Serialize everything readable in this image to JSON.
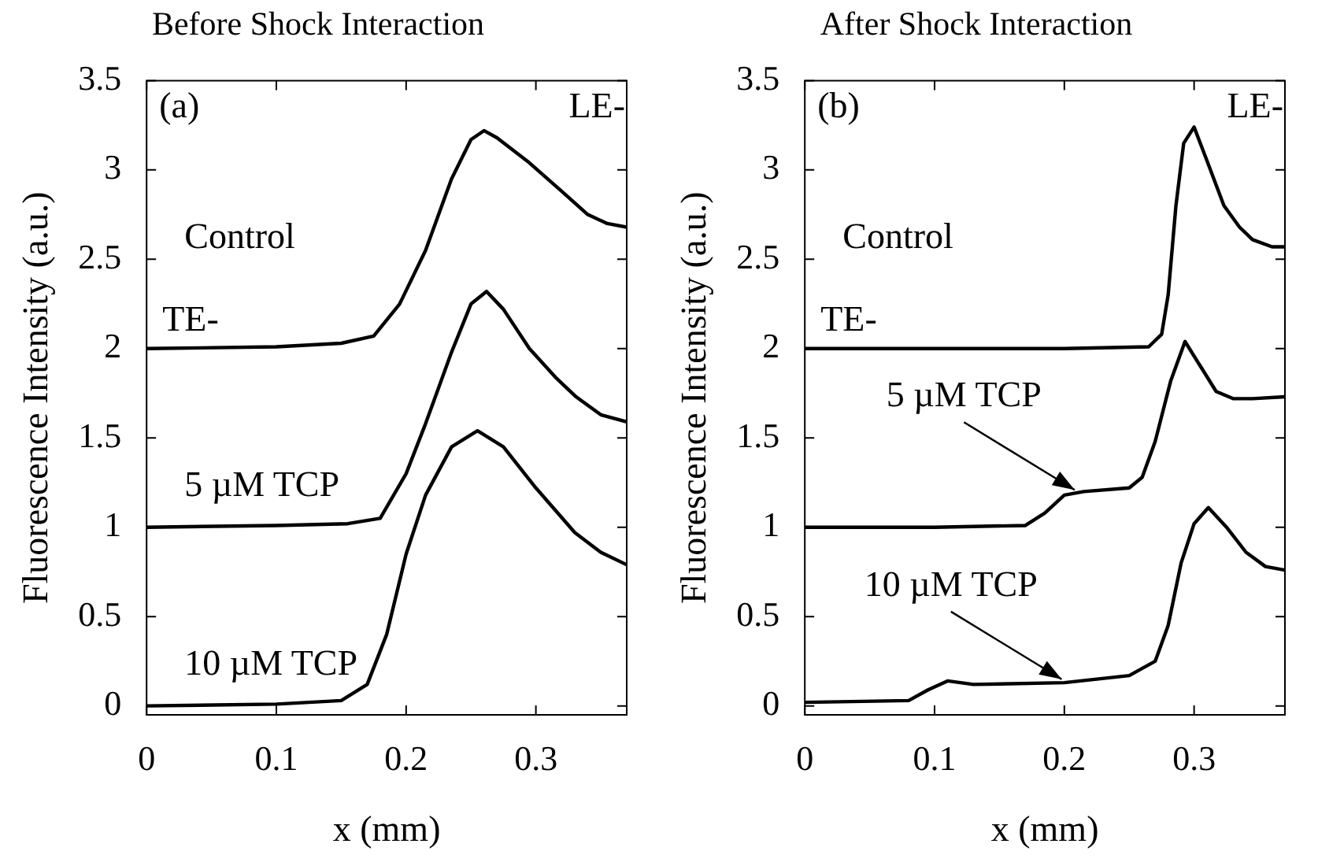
{
  "chart_data": [
    {
      "type": "line",
      "title": "Before Shock Interaction",
      "xlabel": "x (mm)",
      "ylabel": "Fluorescence Intensity (a.u.)",
      "xlim": [
        0,
        0.37
      ],
      "xticks": [
        0,
        0.1,
        0.2,
        0.3
      ],
      "ylim": [
        -0.05,
        3.5
      ],
      "yticks": [
        0,
        0.5,
        1,
        1.5,
        2,
        2.5,
        3,
        3.5
      ],
      "grid": false,
      "legend": false,
      "marker": "none",
      "line_style": "solid",
      "annotations": [
        "(a)",
        {
          "text": "TE-",
          "x": 0,
          "y": 2
        },
        "LE-"
      ],
      "series": [
        {
          "name": "Control",
          "color": "#000000",
          "x": [
            0,
            0.1,
            0.15,
            0.175,
            0.195,
            0.215,
            0.235,
            0.25,
            0.26,
            0.27,
            0.295,
            0.32,
            0.34,
            0.355,
            0.37
          ],
          "values": [
            2.0,
            2.01,
            2.03,
            2.07,
            2.25,
            2.55,
            2.95,
            3.17,
            3.22,
            3.18,
            3.04,
            2.88,
            2.75,
            2.7,
            2.68
          ]
        },
        {
          "name": "5 µM TCP",
          "color": "#000000",
          "x": [
            0,
            0.1,
            0.155,
            0.18,
            0.2,
            0.215,
            0.235,
            0.25,
            0.262,
            0.275,
            0.295,
            0.315,
            0.331,
            0.35,
            0.37
          ],
          "values": [
            1.0,
            1.01,
            1.02,
            1.05,
            1.3,
            1.58,
            1.98,
            2.25,
            2.32,
            2.22,
            2.0,
            1.84,
            1.73,
            1.63,
            1.59
          ]
        },
        {
          "name": "10 µM TCP",
          "color": "#000000",
          "x": [
            0,
            0.1,
            0.15,
            0.17,
            0.185,
            0.2,
            0.215,
            0.235,
            0.255,
            0.275,
            0.3,
            0.33,
            0.35,
            0.37
          ],
          "values": [
            0,
            0.01,
            0.03,
            0.12,
            0.4,
            0.85,
            1.18,
            1.45,
            1.54,
            1.45,
            1.22,
            0.97,
            0.86,
            0.79
          ]
        }
      ]
    },
    {
      "type": "line",
      "title": "After Shock Interaction",
      "xlabel": "x (mm)",
      "ylabel": "Fluorescence Intensity (a.u.)",
      "xlim": [
        0,
        0.37
      ],
      "xticks": [
        0,
        0.1,
        0.2,
        0.3
      ],
      "ylim": [
        -0.05,
        3.5
      ],
      "yticks": [
        0,
        0.5,
        1,
        1.5,
        2,
        2.5,
        3,
        3.5
      ],
      "grid": false,
      "legend": false,
      "marker": "none",
      "line_style": "solid",
      "annotations": [
        "(b)",
        {
          "text": "TE-",
          "x": 0,
          "y": 2
        },
        "LE-",
        {
          "text": "5 µM TCP",
          "x": 0.21,
          "y": 1.2
        },
        {
          "text": "10 µM TCP",
          "x": 0.2,
          "y": 0.14
        }
      ],
      "series": [
        {
          "name": "Control",
          "color": "#000000",
          "x": [
            0,
            0.1,
            0.2,
            0.265,
            0.275,
            0.28,
            0.286,
            0.292,
            0.3,
            0.31,
            0.323,
            0.335,
            0.345,
            0.36,
            0.37
          ],
          "values": [
            2.0,
            2.0,
            2.0,
            2.01,
            2.08,
            2.3,
            2.8,
            3.15,
            3.24,
            3.05,
            2.8,
            2.68,
            2.61,
            2.57,
            2.57
          ]
        },
        {
          "color": "#000000",
          "x": [
            0,
            0.1,
            0.17,
            0.185,
            0.2,
            0.215,
            0.25,
            0.26,
            0.27,
            0.282,
            0.293,
            0.305,
            0.317,
            0.33,
            0.345,
            0.37
          ],
          "values": [
            1.0,
            1.0,
            1.01,
            1.08,
            1.18,
            1.2,
            1.22,
            1.28,
            1.48,
            1.82,
            2.04,
            1.9,
            1.76,
            1.72,
            1.72,
            1.73
          ]
        },
        {
          "color": "#000000",
          "x": [
            0,
            0.08,
            0.095,
            0.11,
            0.13,
            0.2,
            0.25,
            0.27,
            0.28,
            0.29,
            0.3,
            0.311,
            0.325,
            0.34,
            0.355,
            0.37
          ],
          "values": [
            0.02,
            0.03,
            0.09,
            0.14,
            0.12,
            0.13,
            0.17,
            0.25,
            0.45,
            0.8,
            1.02,
            1.11,
            1.0,
            0.86,
            0.78,
            0.76
          ]
        }
      ]
    }
  ]
}
